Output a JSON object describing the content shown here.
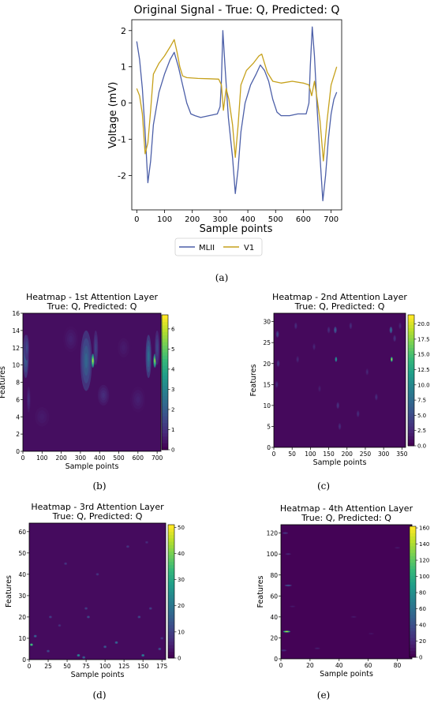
{
  "figure": {
    "captions": [
      "(a)",
      "(b)",
      "(c)",
      "(d)",
      "(e)"
    ]
  },
  "chart_data": [
    {
      "id": "signal",
      "type": "line",
      "title": "Original Signal - True: Q, Predicted: Q",
      "xlabel": "Sample points",
      "ylabel": "Voltage (mV)",
      "xlim": [
        -18,
        738
      ],
      "ylim": [
        -2.95,
        2.3
      ],
      "xticks": [
        0,
        100,
        200,
        300,
        400,
        500,
        600,
        700
      ],
      "yticks": [
        2,
        1,
        0,
        -1,
        -2
      ],
      "legend_position": "bottom-center",
      "series": [
        {
          "name": "MLII",
          "color": "#4c5fa8",
          "points": [
            [
              0,
              1.7
            ],
            [
              10,
              1.2
            ],
            [
              20,
              0.4
            ],
            [
              30,
              -0.8
            ],
            [
              40,
              -2.2
            ],
            [
              50,
              -1.6
            ],
            [
              60,
              -0.6
            ],
            [
              80,
              0.3
            ],
            [
              100,
              0.8
            ],
            [
              120,
              1.2
            ],
            [
              135,
              1.4
            ],
            [
              150,
              1.0
            ],
            [
              165,
              0.5
            ],
            [
              180,
              0.0
            ],
            [
              195,
              -0.3
            ],
            [
              210,
              -0.35
            ],
            [
              230,
              -0.4
            ],
            [
              260,
              -0.35
            ],
            [
              290,
              -0.3
            ],
            [
              300,
              -0.1
            ],
            [
              305,
              0.6
            ],
            [
              310,
              2.0
            ],
            [
              318,
              1.0
            ],
            [
              330,
              -0.4
            ],
            [
              345,
              -1.5
            ],
            [
              355,
              -2.5
            ],
            [
              365,
              -1.8
            ],
            [
              375,
              -0.8
            ],
            [
              390,
              0.0
            ],
            [
              410,
              0.5
            ],
            [
              430,
              0.8
            ],
            [
              445,
              1.05
            ],
            [
              460,
              0.9
            ],
            [
              475,
              0.6
            ],
            [
              490,
              0.1
            ],
            [
              505,
              -0.25
            ],
            [
              520,
              -0.35
            ],
            [
              550,
              -0.35
            ],
            [
              580,
              -0.3
            ],
            [
              610,
              -0.3
            ],
            [
              620,
              0.0
            ],
            [
              625,
              1.0
            ],
            [
              632,
              2.1
            ],
            [
              640,
              1.3
            ],
            [
              650,
              -0.2
            ],
            [
              660,
              -1.5
            ],
            [
              670,
              -2.7
            ],
            [
              680,
              -2.0
            ],
            [
              690,
              -1.0
            ],
            [
              700,
              -0.3
            ],
            [
              710,
              0.1
            ],
            [
              720,
              0.3
            ]
          ]
        },
        {
          "name": "V1",
          "color": "#c6a11b",
          "points": [
            [
              0,
              0.4
            ],
            [
              10,
              0.2
            ],
            [
              20,
              -0.3
            ],
            [
              30,
              -1.4
            ],
            [
              40,
              -1.1
            ],
            [
              50,
              -0.2
            ],
            [
              60,
              0.8
            ],
            [
              80,
              1.1
            ],
            [
              100,
              1.3
            ],
            [
              120,
              1.55
            ],
            [
              135,
              1.75
            ],
            [
              145,
              1.4
            ],
            [
              155,
              1.0
            ],
            [
              165,
              0.75
            ],
            [
              180,
              0.7
            ],
            [
              220,
              0.68
            ],
            [
              260,
              0.67
            ],
            [
              295,
              0.66
            ],
            [
              305,
              0.5
            ],
            [
              312,
              -0.2
            ],
            [
              322,
              0.4
            ],
            [
              332,
              0.1
            ],
            [
              345,
              -0.6
            ],
            [
              355,
              -1.5
            ],
            [
              365,
              -0.6
            ],
            [
              375,
              0.5
            ],
            [
              395,
              0.9
            ],
            [
              420,
              1.1
            ],
            [
              440,
              1.3
            ],
            [
              450,
              1.35
            ],
            [
              460,
              1.1
            ],
            [
              470,
              0.85
            ],
            [
              490,
              0.6
            ],
            [
              520,
              0.55
            ],
            [
              560,
              0.6
            ],
            [
              600,
              0.55
            ],
            [
              620,
              0.5
            ],
            [
              630,
              0.2
            ],
            [
              640,
              0.6
            ],
            [
              650,
              0.1
            ],
            [
              660,
              -0.5
            ],
            [
              672,
              -1.6
            ],
            [
              685,
              -0.5
            ],
            [
              700,
              0.5
            ],
            [
              720,
              1.0
            ]
          ]
        }
      ]
    },
    {
      "id": "h1",
      "type": "heatmap",
      "title": "Heatmap - 1st Attention Layer",
      "subtitle": "True: Q, Predicted: Q",
      "xlabel": "Sample points",
      "ylabel": "Features",
      "xlim": [
        0,
        720
      ],
      "ylim": [
        0,
        16
      ],
      "xticks": [
        0,
        100,
        200,
        300,
        400,
        500,
        600,
        700
      ],
      "yticks": [
        0,
        2,
        4,
        6,
        8,
        10,
        12,
        14,
        16
      ],
      "colorbar_ticks": [
        0,
        1,
        2,
        3,
        4,
        5,
        6
      ],
      "colorbar_max": 6.7,
      "background": 0.25,
      "blobs": [
        [
          15,
          11,
          15,
          2.5,
          2.2
        ],
        [
          20,
          12,
          12,
          1.5,
          1.6
        ],
        [
          30,
          6,
          10,
          1.5,
          0.9
        ],
        [
          330,
          10.5,
          30,
          3.5,
          2.2
        ],
        [
          365,
          10.5,
          8,
          0.8,
          6.3
        ],
        [
          380,
          12,
          12,
          2,
          1.4
        ],
        [
          420,
          6.5,
          30,
          1.2,
          0.9
        ],
        [
          100,
          4,
          50,
          1.5,
          0.5
        ],
        [
          600,
          6,
          40,
          1.5,
          0.6
        ],
        [
          655,
          11,
          15,
          2.5,
          2.5
        ],
        [
          688,
          10.5,
          8,
          0.8,
          6.0
        ],
        [
          700,
          12,
          12,
          2,
          1.5
        ],
        [
          250,
          13,
          40,
          1.5,
          0.6
        ],
        [
          525,
          12,
          40,
          1.5,
          0.5
        ]
      ]
    },
    {
      "id": "h2",
      "type": "heatmap",
      "title": "Heatmap - 2nd Attention Layer",
      "subtitle": "True: Q, Predicted: Q",
      "xlabel": "Sample points",
      "ylabel": "Features",
      "xlim": [
        0,
        360
      ],
      "ylim": [
        0,
        32
      ],
      "xticks": [
        0,
        50,
        100,
        150,
        200,
        250,
        300,
        350
      ],
      "yticks": [
        0,
        5,
        10,
        15,
        20,
        25,
        30
      ],
      "colorbar_ticks": [
        0.0,
        2.5,
        5.0,
        7.5,
        10.0,
        12.5,
        15.0,
        17.5,
        20.0
      ],
      "colorbar_max": 21.5,
      "background": 0.5,
      "blobs": [
        [
          10,
          27,
          4,
          0.8,
          5
        ],
        [
          12,
          20,
          4,
          0.8,
          4
        ],
        [
          8,
          15,
          4,
          0.8,
          3
        ],
        [
          60,
          29,
          4,
          0.8,
          3
        ],
        [
          65,
          21,
          4,
          0.8,
          2.5
        ],
        [
          150,
          28,
          4,
          0.8,
          3
        ],
        [
          168,
          28,
          4,
          0.8,
          7
        ],
        [
          170,
          21,
          3,
          0.6,
          13
        ],
        [
          175,
          10,
          4,
          0.8,
          3.5
        ],
        [
          180,
          5,
          4,
          0.8,
          3
        ],
        [
          210,
          29,
          4,
          0.8,
          3
        ],
        [
          230,
          8,
          4,
          0.8,
          3
        ],
        [
          280,
          12,
          4,
          0.8,
          3
        ],
        [
          320,
          28,
          4,
          0.8,
          8
        ],
        [
          322,
          21,
          3,
          0.6,
          21
        ],
        [
          330,
          26,
          4,
          0.8,
          3.5
        ],
        [
          110,
          24,
          4,
          0.8,
          2.5
        ],
        [
          125,
          14,
          4,
          0.8,
          2
        ],
        [
          255,
          18,
          4,
          0.8,
          2.5
        ],
        [
          345,
          29,
          4,
          0.8,
          2.5
        ]
      ]
    },
    {
      "id": "h3",
      "type": "heatmap",
      "title": "Heatmap - 3rd Attention Layer",
      "subtitle": "True: Q, Predicted: Q",
      "xlabel": "Sample points",
      "ylabel": "Features",
      "xlim": [
        0,
        180
      ],
      "ylim": [
        0,
        64
      ],
      "xticks": [
        0,
        25,
        50,
        75,
        100,
        125,
        150,
        175
      ],
      "yticks": [
        0,
        10,
        20,
        30,
        40,
        50,
        60
      ],
      "colorbar_ticks": [
        0,
        10,
        20,
        30,
        40,
        50
      ],
      "colorbar_max": 51,
      "background": 1.5,
      "blobs": [
        [
          3,
          7,
          2,
          0.6,
          45
        ],
        [
          8,
          11,
          2,
          0.6,
          20
        ],
        [
          25,
          4,
          2,
          0.6,
          14
        ],
        [
          65,
          2,
          2,
          0.6,
          30
        ],
        [
          72,
          1,
          2,
          0.6,
          20
        ],
        [
          78,
          20,
          2,
          0.6,
          15
        ],
        [
          75,
          24,
          2,
          0.6,
          12
        ],
        [
          100,
          6,
          2,
          0.6,
          18
        ],
        [
          115,
          8,
          2,
          0.6,
          22
        ],
        [
          145,
          20,
          2,
          0.6,
          14
        ],
        [
          150,
          2,
          2,
          0.6,
          28
        ],
        [
          172,
          5,
          2,
          0.6,
          16
        ],
        [
          28,
          20,
          2,
          0.6,
          12
        ],
        [
          48,
          45,
          2,
          0.6,
          10
        ],
        [
          90,
          40,
          2,
          0.6,
          10
        ],
        [
          130,
          53,
          2,
          0.6,
          10
        ],
        [
          160,
          24,
          2,
          0.6,
          12
        ],
        [
          40,
          16,
          2,
          0.6,
          9
        ],
        [
          175,
          10,
          2,
          0.6,
          10
        ],
        [
          155,
          55,
          2,
          0.6,
          8
        ]
      ]
    },
    {
      "id": "h4",
      "type": "heatmap",
      "title": "Heatmap - 4th Attention Layer",
      "subtitle": "True: Q, Predicted: Q",
      "xlabel": "Sample points",
      "ylabel": "Features",
      "xlim": [
        0,
        90
      ],
      "ylim": [
        0,
        128
      ],
      "xticks": [
        0,
        20,
        40,
        60,
        80
      ],
      "yticks": [
        0,
        20,
        40,
        60,
        80,
        100,
        120
      ],
      "colorbar_ticks": [
        0,
        20,
        40,
        60,
        80,
        100,
        120,
        140,
        160
      ],
      "colorbar_max": 162,
      "background": 1,
      "blobs": [
        [
          4,
          26,
          2.5,
          0.8,
          160
        ],
        [
          5,
          70,
          2.5,
          0.8,
          45
        ],
        [
          3,
          120,
          2,
          0.8,
          30
        ],
        [
          2,
          8,
          2,
          0.8,
          25
        ],
        [
          5,
          100,
          2,
          0.8,
          20
        ],
        [
          25,
          10,
          2,
          0.8,
          15
        ],
        [
          50,
          40,
          2,
          0.8,
          12
        ],
        [
          80,
          106,
          2,
          0.8,
          12
        ],
        [
          62,
          24,
          2,
          0.8,
          10
        ],
        [
          8,
          50,
          2,
          0.8,
          12
        ]
      ]
    }
  ]
}
